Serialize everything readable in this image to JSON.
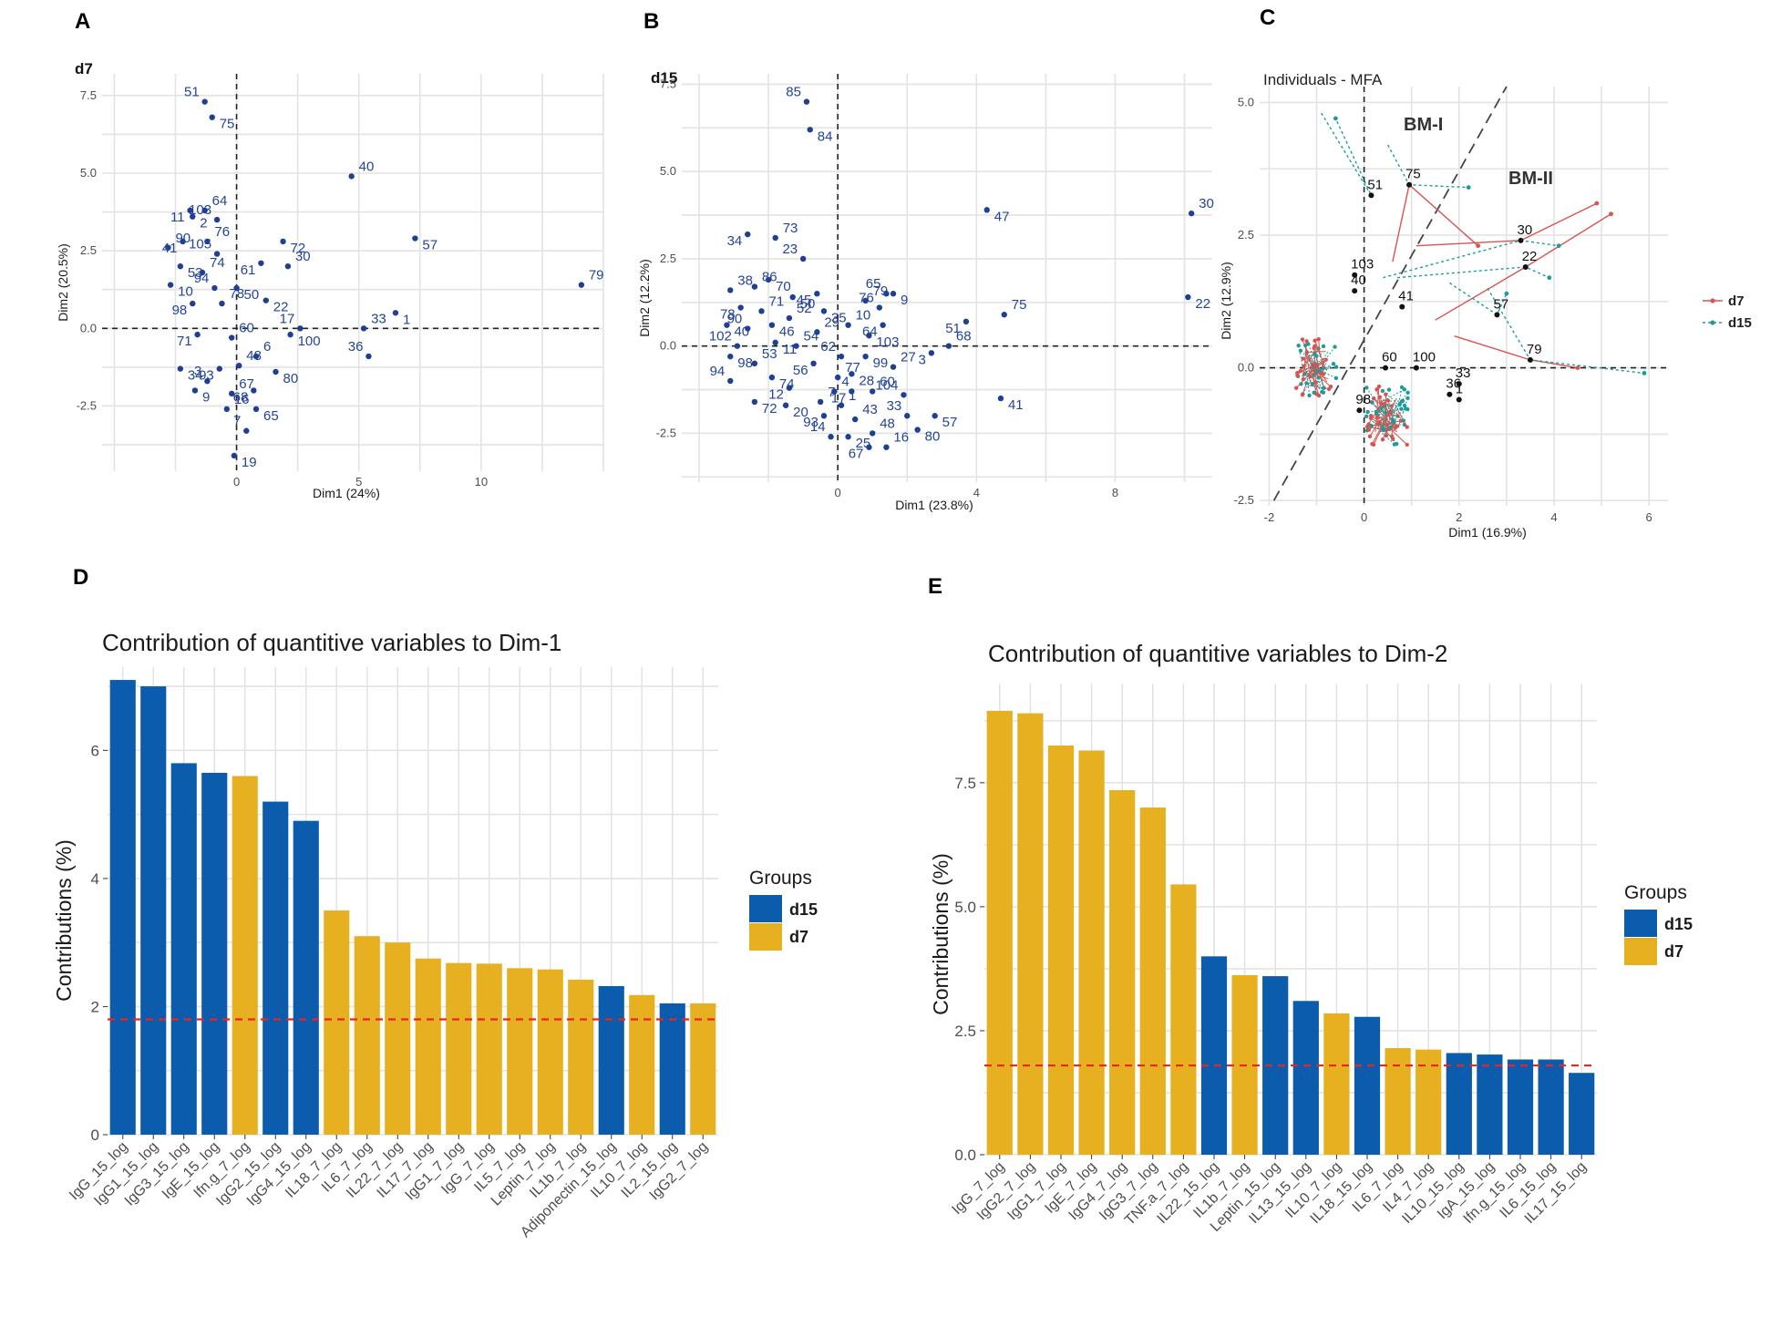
{
  "chart_data": [
    {
      "panel": "A",
      "type": "scatter",
      "title": "d7",
      "xlabel": "Dim1 (24%)",
      "ylabel": "Dim2 (20.5%)",
      "xlim": [
        -5.5,
        15
      ],
      "ylim": [
        -4.6,
        8.2
      ],
      "xticks": [
        0,
        5,
        10
      ],
      "yticks": [
        -2.5,
        0.0,
        2.5,
        5.0,
        7.5
      ],
      "points": [
        {
          "id": "51",
          "x": -1.3,
          "y": 7.3
        },
        {
          "id": "75",
          "x": -1.0,
          "y": 6.8
        },
        {
          "id": "40",
          "x": 4.7,
          "y": 4.9
        },
        {
          "id": "11",
          "x": -1.9,
          "y": 3.8
        },
        {
          "id": "64",
          "x": -1.3,
          "y": 3.8
        },
        {
          "id": "2",
          "x": -1.8,
          "y": 3.6
        },
        {
          "id": "103",
          "x": -0.8,
          "y": 3.5
        },
        {
          "id": "57",
          "x": 7.3,
          "y": 2.9
        },
        {
          "id": "90",
          "x": -2.8,
          "y": 2.6
        },
        {
          "id": "41",
          "x": -2.2,
          "y": 2.8
        },
        {
          "id": "76",
          "x": -1.2,
          "y": 2.8
        },
        {
          "id": "72",
          "x": 1.9,
          "y": 2.8
        },
        {
          "id": "105",
          "x": -0.8,
          "y": 2.4
        },
        {
          "id": "53",
          "x": -2.3,
          "y": 2.0
        },
        {
          "id": "74",
          "x": -1.4,
          "y": 1.8
        },
        {
          "id": "61",
          "x": 1.0,
          "y": 2.1
        },
        {
          "id": "30",
          "x": 2.1,
          "y": 2.0
        },
        {
          "id": "10",
          "x": -2.7,
          "y": 1.4
        },
        {
          "id": "94",
          "x": -0.9,
          "y": 1.3
        },
        {
          "id": "50",
          "x": 0.0,
          "y": 1.3
        },
        {
          "id": "79",
          "x": 14.1,
          "y": 1.4
        },
        {
          "id": "98",
          "x": -1.8,
          "y": 0.8
        },
        {
          "id": "78",
          "x": -0.6,
          "y": 0.8
        },
        {
          "id": "22",
          "x": 1.2,
          "y": 0.9
        },
        {
          "id": "17",
          "x": 2.6,
          "y": 0.0
        },
        {
          "id": "1",
          "x": 6.5,
          "y": 0.5
        },
        {
          "id": "33",
          "x": 5.2,
          "y": 0.0
        },
        {
          "id": "71",
          "x": -1.6,
          "y": -0.2
        },
        {
          "id": "60",
          "x": -0.2,
          "y": -0.3
        },
        {
          "id": "100",
          "x": 2.2,
          "y": -0.2
        },
        {
          "id": "36",
          "x": 5.4,
          "y": -0.9
        },
        {
          "id": "34",
          "x": -2.3,
          "y": -1.3
        },
        {
          "id": "6",
          "x": 0.8,
          "y": -0.9
        },
        {
          "id": "93",
          "x": -0.7,
          "y": -1.3
        },
        {
          "id": "48",
          "x": 0.1,
          "y": -1.2
        },
        {
          "id": "80",
          "x": 1.6,
          "y": -1.4
        },
        {
          "id": "3",
          "x": -1.2,
          "y": -1.7
        },
        {
          "id": "9",
          "x": -1.7,
          "y": -2.0
        },
        {
          "id": "67",
          "x": -0.2,
          "y": -2.1
        },
        {
          "id": "68",
          "x": 0.7,
          "y": -2.0
        },
        {
          "id": "16",
          "x": -0.4,
          "y": -2.6
        },
        {
          "id": "65",
          "x": 0.8,
          "y": -2.6
        },
        {
          "id": "7",
          "x": 0.4,
          "y": -3.3
        },
        {
          "id": "19",
          "x": -0.1,
          "y": -4.1
        }
      ]
    },
    {
      "panel": "B",
      "type": "scatter",
      "title": "d15",
      "xlabel": "Dim1 (23.8%)",
      "ylabel": "Dim2 (12.2%)",
      "xlim": [
        -4.5,
        10.8
      ],
      "ylim": [
        -3.9,
        7.8
      ],
      "xticks": [
        0,
        4,
        8
      ],
      "yticks": [
        -2.5,
        0.0,
        2.5,
        5.0,
        7.5
      ],
      "points": [
        {
          "id": "85",
          "x": -0.9,
          "y": 7.0
        },
        {
          "id": "84",
          "x": -0.8,
          "y": 6.2
        },
        {
          "id": "30",
          "x": 10.2,
          "y": 3.8
        },
        {
          "id": "34",
          "x": -2.6,
          "y": 3.2
        },
        {
          "id": "73",
          "x": -1.8,
          "y": 3.1
        },
        {
          "id": "47",
          "x": 4.3,
          "y": 3.9
        },
        {
          "id": "23",
          "x": -1.0,
          "y": 2.5
        },
        {
          "id": "70",
          "x": -2.0,
          "y": 1.9
        },
        {
          "id": "86",
          "x": -2.4,
          "y": 1.7
        },
        {
          "id": "45",
          "x": -0.6,
          "y": 1.5
        },
        {
          "id": "38",
          "x": -3.1,
          "y": 1.6
        },
        {
          "id": "50",
          "x": -1.3,
          "y": 1.4
        },
        {
          "id": "65",
          "x": 1.4,
          "y": 1.5
        },
        {
          "id": "9",
          "x": 1.6,
          "y": 1.5
        },
        {
          "id": "79",
          "x": 0.8,
          "y": 1.3
        },
        {
          "id": "78",
          "x": -2.8,
          "y": 1.1
        },
        {
          "id": "71",
          "x": -2.2,
          "y": 1.0
        },
        {
          "id": "35",
          "x": -0.4,
          "y": 1.0
        },
        {
          "id": "76",
          "x": 1.2,
          "y": 1.1
        },
        {
          "id": "22",
          "x": 10.1,
          "y": 1.4
        },
        {
          "id": "52",
          "x": -1.4,
          "y": 0.8
        },
        {
          "id": "51",
          "x": 3.7,
          "y": 0.7
        },
        {
          "id": "75",
          "x": 4.8,
          "y": 0.9
        },
        {
          "id": "40",
          "x": -3.2,
          "y": 0.6
        },
        {
          "id": "90",
          "x": -2.6,
          "y": 0.5
        },
        {
          "id": "46",
          "x": -1.9,
          "y": 0.6
        },
        {
          "id": "10",
          "x": 0.3,
          "y": 0.6
        },
        {
          "id": "64",
          "x": 1.3,
          "y": 0.6
        },
        {
          "id": "29",
          "x": -0.6,
          "y": 0.4
        },
        {
          "id": "103",
          "x": 0.9,
          "y": 0.3
        },
        {
          "id": "102",
          "x": -2.9,
          "y": 0.0
        },
        {
          "id": "11",
          "x": -1.8,
          "y": 0.1
        },
        {
          "id": "54",
          "x": -1.2,
          "y": 0.0
        },
        {
          "id": "3",
          "x": 2.7,
          "y": -0.2
        },
        {
          "id": "68",
          "x": 3.2,
          "y": 0.0
        },
        {
          "id": "98",
          "x": -3.1,
          "y": -0.3
        },
        {
          "id": "62",
          "x": 0.1,
          "y": -0.3
        },
        {
          "id": "99",
          "x": 0.8,
          "y": -0.3
        },
        {
          "id": "53",
          "x": -2.4,
          "y": -0.5
        },
        {
          "id": "56",
          "x": -0.7,
          "y": -0.5
        },
        {
          "id": "27",
          "x": 1.6,
          "y": -0.6
        },
        {
          "id": "28",
          "x": 0.4,
          "y": -0.8
        },
        {
          "id": "94",
          "x": -3.1,
          "y": -1.0
        },
        {
          "id": "74",
          "x": -1.9,
          "y": -0.9
        },
        {
          "id": "77",
          "x": 0.0,
          "y": -0.9
        },
        {
          "id": "12",
          "x": -1.4,
          "y": -1.2
        },
        {
          "id": "60",
          "x": 1.0,
          "y": -1.3
        },
        {
          "id": "41",
          "x": 4.7,
          "y": -1.5
        },
        {
          "id": "104",
          "x": 1.9,
          "y": -1.4
        },
        {
          "id": "72",
          "x": -2.4,
          "y": -1.6
        },
        {
          "id": "4",
          "x": -0.1,
          "y": -1.3
        },
        {
          "id": "17",
          "x": 0.4,
          "y": -1.3
        },
        {
          "id": "7",
          "x": -0.5,
          "y": -1.6
        },
        {
          "id": "20",
          "x": -1.5,
          "y": -1.7
        },
        {
          "id": "33",
          "x": 2.0,
          "y": -2.0
        },
        {
          "id": "57",
          "x": 2.8,
          "y": -2.0
        },
        {
          "id": "43",
          "x": 0.5,
          "y": -2.1
        },
        {
          "id": "93",
          "x": -0.4,
          "y": -2.0
        },
        {
          "id": "1",
          "x": 0.1,
          "y": -1.7
        },
        {
          "id": "80",
          "x": 2.3,
          "y": -2.4
        },
        {
          "id": "14",
          "x": -0.2,
          "y": -2.6
        },
        {
          "id": "25",
          "x": 0.3,
          "y": -2.6
        },
        {
          "id": "48",
          "x": 1.0,
          "y": -2.5
        },
        {
          "id": "67",
          "x": 0.9,
          "y": -2.9
        },
        {
          "id": "16",
          "x": 1.4,
          "y": -2.9
        }
      ]
    },
    {
      "panel": "C",
      "type": "scatter",
      "title": "Individuals - MFA",
      "xlabel": "Dim1 (16.9%)",
      "ylabel": "Dim2 (12.9%)",
      "xlim": [
        -2.2,
        6.4
      ],
      "ylim": [
        -2.6,
        5.3
      ],
      "xticks": [
        -2,
        0,
        2,
        4,
        6
      ],
      "yticks": [
        -2.5,
        0.0,
        2.5,
        5.0
      ],
      "annotations": [
        "BM-I",
        "BM-II"
      ],
      "legend": [
        {
          "name": "d7",
          "color": "#d9534f"
        },
        {
          "name": "d15",
          "color": "#1a9d9b"
        }
      ],
      "centroids": [
        {
          "id": "75",
          "x": 0.95,
          "y": 3.45
        },
        {
          "id": "51",
          "x": 0.15,
          "y": 3.25
        },
        {
          "id": "30",
          "x": 3.3,
          "y": 2.4
        },
        {
          "id": "22",
          "x": 3.4,
          "y": 1.9
        },
        {
          "id": "103",
          "x": -0.2,
          "y": 1.75
        },
        {
          "id": "41",
          "x": 0.8,
          "y": 1.15
        },
        {
          "id": "40",
          "x": -0.2,
          "y": 1.45
        },
        {
          "id": "57",
          "x": 2.8,
          "y": 1.0
        },
        {
          "id": "79",
          "x": 3.5,
          "y": 0.15
        },
        {
          "id": "60",
          "x": 0.45,
          "y": 0.0
        },
        {
          "id": "100",
          "x": 1.1,
          "y": 0.0
        },
        {
          "id": "33",
          "x": 2.0,
          "y": -0.3
        },
        {
          "id": "36",
          "x": 1.8,
          "y": -0.5
        },
        {
          "id": "1",
          "x": 2.0,
          "y": -0.6
        },
        {
          "id": "98",
          "x": -0.1,
          "y": -0.8
        }
      ],
      "links": [
        {
          "group": "d7",
          "from": [
            1.1,
            2.3
          ],
          "to": [
            3.3,
            2.4
          ],
          "end": [
            4.9,
            3.1
          ]
        },
        {
          "group": "d7",
          "from": [
            1.5,
            0.9
          ],
          "to": [
            3.4,
            1.9
          ],
          "end": [
            5.2,
            2.9
          ]
        },
        {
          "group": "d7",
          "from": [
            0.6,
            2.0
          ],
          "to": [
            0.95,
            3.45
          ],
          "end": [
            2.4,
            2.3
          ]
        },
        {
          "group": "d7",
          "from": [
            1.9,
            0.6
          ],
          "to": [
            3.5,
            0.15
          ],
          "end": [
            4.5,
            0.0
          ]
        },
        {
          "group": "d15",
          "from": [
            0.7,
            1.7
          ],
          "to": [
            3.4,
            1.9
          ],
          "end": [
            3.9,
            1.7
          ]
        },
        {
          "group": "d15",
          "from": [
            0.4,
            1.7
          ],
          "to": [
            3.3,
            2.4
          ],
          "end": [
            4.1,
            2.3
          ]
        },
        {
          "group": "d15",
          "from": [
            2.6,
            1.5
          ],
          "to": [
            3.5,
            0.15
          ],
          "end": [
            5.9,
            -0.1
          ]
        },
        {
          "group": "d15",
          "from": [
            -0.9,
            4.8
          ],
          "to": [
            0.15,
            3.25
          ],
          "end": [
            -0.6,
            4.7
          ]
        },
        {
          "group": "d15",
          "from": [
            0.5,
            4.2
          ],
          "to": [
            0.95,
            3.45
          ],
          "end": [
            2.2,
            3.4
          ]
        },
        {
          "group": "d15",
          "from": [
            1.8,
            1.6
          ],
          "to": [
            2.8,
            1.0
          ],
          "end": [
            3.0,
            1.4
          ]
        }
      ]
    },
    {
      "panel": "D",
      "type": "bar",
      "title": "Contribution of quantitive variables to Dim-1",
      "xlabel": "",
      "ylabel": "Contributions (%)",
      "ylim": [
        0,
        7.3
      ],
      "yticks": [
        0,
        2,
        4,
        6
      ],
      "reference_line": 1.8,
      "legend_title": "Groups",
      "legend": [
        {
          "name": "d15",
          "color": "#0b5cad"
        },
        {
          "name": "d7",
          "color": "#e6b020"
        }
      ],
      "categories": [
        "IgG_15_log",
        "IgG1_15_log",
        "IgG3_15_log",
        "IgE_15_log",
        "Ifn.g_7_log",
        "IgG2_15_log",
        "IgG4_15_log",
        "IL18_7_log",
        "IL6_7_log",
        "IL22_7_log",
        "IL17_7_log",
        "IgG1_7_log",
        "IgG_7_log",
        "IL5_7_log",
        "Leptin_7_log",
        "IL1b_7_log",
        "Adiponectin_15_log",
        "IL10_7_log",
        "IL2_15_log",
        "IgG2_7_log"
      ],
      "values": [
        7.1,
        7.0,
        5.8,
        5.65,
        5.6,
        5.2,
        4.9,
        3.5,
        3.1,
        3.0,
        2.75,
        2.68,
        2.67,
        2.6,
        2.58,
        2.42,
        2.32,
        2.18,
        2.05,
        2.05
      ],
      "groups": [
        "d15",
        "d15",
        "d15",
        "d15",
        "d7",
        "d15",
        "d15",
        "d7",
        "d7",
        "d7",
        "d7",
        "d7",
        "d7",
        "d7",
        "d7",
        "d7",
        "d15",
        "d7",
        "d15",
        "d7"
      ]
    },
    {
      "panel": "E",
      "type": "bar",
      "title": "Contribution of quantitive variables to Dim-2",
      "xlabel": "",
      "ylabel": "Contributions (%)",
      "ylim": [
        0,
        9.5
      ],
      "yticks": [
        0.0,
        2.5,
        5.0,
        7.5
      ],
      "reference_line": 1.8,
      "legend_title": "Groups",
      "legend": [
        {
          "name": "d15",
          "color": "#0b5cad"
        },
        {
          "name": "d7",
          "color": "#e6b020"
        }
      ],
      "categories": [
        "IgG_7_log",
        "IgG2_7_log",
        "IgG1_7_log",
        "IgE_7_log",
        "IgG4_7_log",
        "IgG3_7_log",
        "TNF.a_7_log",
        "IL22_15_log",
        "IL1b_7_log",
        "Leptin_15_log",
        "IL13_15_log",
        "IL10_7_log",
        "IL18_15_log",
        "IL6_7_log",
        "IL4_7_log",
        "IL10_15_log",
        "IgA_15_log",
        "Ifn.g_15_log",
        "IL6_15_log",
        "IL17_15_log"
      ],
      "values": [
        8.95,
        8.9,
        8.25,
        8.15,
        7.35,
        7.0,
        5.45,
        4.0,
        3.62,
        3.6,
        3.1,
        2.85,
        2.78,
        2.15,
        2.12,
        2.05,
        2.02,
        1.92,
        1.92,
        1.65
      ],
      "groups": [
        "d7",
        "d7",
        "d7",
        "d7",
        "d7",
        "d7",
        "d7",
        "d15",
        "d7",
        "d15",
        "d15",
        "d7",
        "d15",
        "d7",
        "d7",
        "d15",
        "d15",
        "d15",
        "d15",
        "d15"
      ]
    }
  ]
}
